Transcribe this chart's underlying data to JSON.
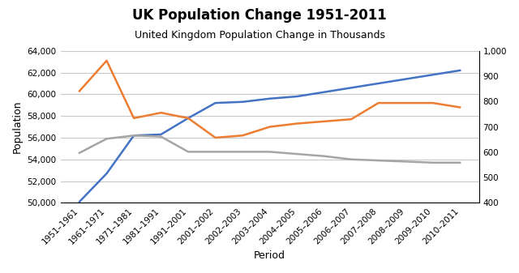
{
  "title": "UK Population Change 1951-2011",
  "subtitle": "United Kingdom Population Change in Thousands",
  "xlabel": "Period",
  "ylabel": "Population",
  "periods": [
    "1951–1961",
    "1961–1971",
    "1971–1981",
    "1981–1991",
    "1991–2001",
    "2001–2002",
    "2002–2003",
    "2003–2004",
    "2004–2005",
    "2005–2006",
    "2006–2007",
    "2007–2008",
    "2008–2009",
    "2009–2010",
    "2010–2011"
  ],
  "blue_line": [
    50100,
    52700,
    56200,
    56300,
    57800,
    59200,
    59300,
    59600,
    59800,
    60200,
    60600,
    61000,
    61400,
    61800,
    62200
  ],
  "orange_line": [
    60300,
    63100,
    57800,
    58300,
    57800,
    56000,
    56200,
    57000,
    57300,
    57500,
    57700,
    59200,
    59200,
    59200,
    58800
  ],
  "gray_line": [
    54600,
    55900,
    56200,
    56100,
    54700,
    54700,
    54700,
    54700,
    54500,
    54300,
    54000,
    53900,
    53800,
    53700,
    53700
  ],
  "left_ylim": [
    50000,
    64000
  ],
  "left_yticks": [
    50000,
    52000,
    54000,
    56000,
    58000,
    60000,
    62000,
    64000
  ],
  "right_ylim": [
    400,
    1000
  ],
  "right_yticks": [
    400,
    500,
    600,
    700,
    800,
    900,
    1000
  ],
  "blue_color": "#4472C4",
  "orange_color": "#ED7D31",
  "gray_color": "#A5A5A5",
  "bg_color": "#FFFFFF",
  "grid_color": "#C8C8C8",
  "title_fontsize": 12,
  "subtitle_fontsize": 9,
  "label_fontsize": 9,
  "tick_fontsize": 7.5
}
